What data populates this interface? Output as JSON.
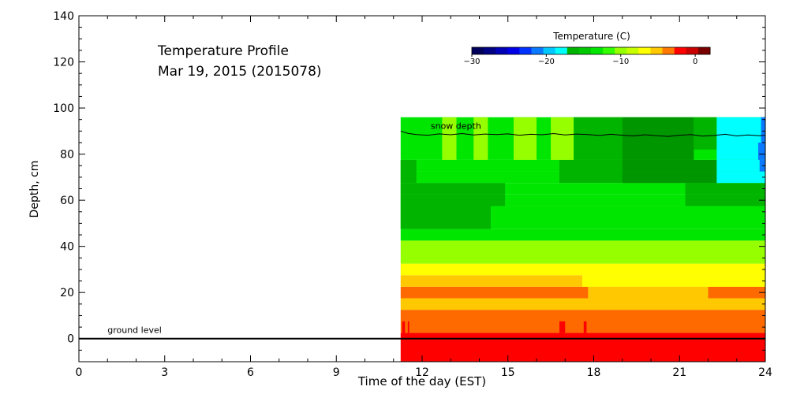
{
  "chart_data": {
    "type": "heatmap",
    "title_line1": "Temperature Profile",
    "title_line2": "Mar 19, 2015 (2015078)",
    "xlabel": "Time of the day (EST)",
    "ylabel": "Depth, cm",
    "xlim": [
      0,
      24
    ],
    "ylim": [
      -10,
      140
    ],
    "xticks": [
      0,
      3,
      6,
      9,
      12,
      15,
      18,
      21,
      24
    ],
    "yticks": [
      0,
      20,
      40,
      60,
      80,
      100,
      120,
      140
    ],
    "grid": false,
    "colorbar": {
      "title": "Temperature (C)",
      "range": [
        -30,
        2
      ],
      "tick_values": [
        -30,
        -20,
        -10,
        0
      ],
      "tick_labels": [
        "−30",
        "−20",
        "−10",
        "0"
      ],
      "colors": [
        "#00005a",
        "#000082",
        "#0000b4",
        "#0000e6",
        "#0032ff",
        "#0a78ff",
        "#00c8ff",
        "#00ffff",
        "#00b400",
        "#00c800",
        "#00e600",
        "#32ff00",
        "#96ff00",
        "#c8ff00",
        "#ffff00",
        "#ffc800",
        "#ff7800",
        "#ff0000",
        "#c80000",
        "#780000"
      ]
    },
    "annotations": [
      {
        "text": "snow depth",
        "x": 12.3,
        "y": 91
      },
      {
        "text": "ground level",
        "x": 1.0,
        "y": 2.5
      }
    ],
    "ground_level": 0,
    "data_start_hour": 11.25,
    "bands": [
      {
        "ymin": -10,
        "ymax": 2.5,
        "color": "#ff0000",
        "segments": []
      },
      {
        "ymin": 2.5,
        "ymax": 12.5,
        "color": "#ff6a00",
        "segments": [
          {
            "x0": 11.3,
            "x1": 11.4,
            "ymin": 2.5,
            "ymax": 7.5,
            "color": "#ff0000"
          },
          {
            "x0": 11.5,
            "x1": 11.55,
            "ymin": 2.5,
            "ymax": 7.5,
            "color": "#ff0000"
          },
          {
            "x0": 16.8,
            "x1": 17.0,
            "ymin": 2.5,
            "ymax": 7.5,
            "color": "#ff0000"
          },
          {
            "x0": 17.65,
            "x1": 17.75,
            "ymin": 2.5,
            "ymax": 7.5,
            "color": "#ff0000"
          }
        ]
      },
      {
        "ymin": 12.5,
        "ymax": 17.5,
        "color": "#ffc800",
        "segments": []
      },
      {
        "ymin": 17.5,
        "ymax": 22.5,
        "color": "#ff6a00",
        "segments": [
          {
            "x0": 17.8,
            "x1": 22.0,
            "ymin": 17.5,
            "ymax": 22.5,
            "color": "#ffc800"
          }
        ]
      },
      {
        "ymin": 22.5,
        "ymax": 27.5,
        "color": "#ffc800",
        "segments": [
          {
            "x0": 17.6,
            "x1": 24.0,
            "ymin": 22.5,
            "ymax": 27.5,
            "color": "#ffff00"
          }
        ]
      },
      {
        "ymin": 27.5,
        "ymax": 32.5,
        "color": "#ffff00",
        "segments": []
      },
      {
        "ymin": 32.5,
        "ymax": 42.5,
        "color": "#96ff00",
        "segments": []
      },
      {
        "ymin": 42.5,
        "ymax": 47.5,
        "color": "#00e600",
        "segments": []
      },
      {
        "ymin": 47.5,
        "ymax": 57.5,
        "color": "#00e600",
        "segments": [
          {
            "x0": 11.25,
            "x1": 14.4,
            "ymin": 47.5,
            "ymax": 57.5,
            "color": "#00b400"
          }
        ]
      },
      {
        "ymin": 57.5,
        "ymax": 62.5,
        "color": "#00e600",
        "segments": [
          {
            "x0": 11.25,
            "x1": 14.9,
            "ymin": 57.5,
            "ymax": 62.5,
            "color": "#00b400"
          },
          {
            "x0": 21.2,
            "x1": 24.0,
            "ymin": 57.5,
            "ymax": 62.5,
            "color": "#00b400"
          }
        ]
      },
      {
        "ymin": 62.5,
        "ymax": 67.5,
        "color": "#00e600",
        "segments": [
          {
            "x0": 11.25,
            "x1": 14.9,
            "ymin": 62.5,
            "ymax": 67.5,
            "color": "#00b400"
          },
          {
            "x0": 21.2,
            "x1": 24.0,
            "ymin": 62.5,
            "ymax": 67.5,
            "color": "#00b400"
          }
        ]
      },
      {
        "ymin": 67.5,
        "ymax": 72.5,
        "color": "#00e600",
        "segments": [
          {
            "x0": 11.25,
            "x1": 11.8,
            "ymin": 67.5,
            "ymax": 72.5,
            "color": "#00b400"
          },
          {
            "x0": 16.8,
            "x1": 22.3,
            "ymin": 67.5,
            "ymax": 72.5,
            "color": "#00b400"
          },
          {
            "x0": 19.0,
            "x1": 22.3,
            "ymin": 67.5,
            "ymax": 72.5,
            "color": "#009600"
          },
          {
            "x0": 22.3,
            "x1": 24.0,
            "ymin": 67.5,
            "ymax": 72.5,
            "color": "#00ffff"
          }
        ]
      },
      {
        "ymin": 72.5,
        "ymax": 77.5,
        "color": "#00e600",
        "segments": [
          {
            "x0": 11.25,
            "x1": 11.8,
            "ymin": 72.5,
            "ymax": 77.5,
            "color": "#00b400"
          },
          {
            "x0": 16.8,
            "x1": 19.0,
            "ymin": 72.5,
            "ymax": 77.5,
            "color": "#00b400"
          },
          {
            "x0": 19.0,
            "x1": 22.3,
            "ymin": 72.5,
            "ymax": 77.5,
            "color": "#009600"
          },
          {
            "x0": 22.3,
            "x1": 24.0,
            "ymin": 72.5,
            "ymax": 77.5,
            "color": "#00ffff"
          },
          {
            "x0": 23.8,
            "x1": 24.0,
            "ymin": 72.5,
            "ymax": 77.5,
            "color": "#0a78ff"
          }
        ]
      },
      {
        "ymin": 77.5,
        "ymax": 96,
        "color": "#00e600",
        "segments": [
          {
            "x0": 12.7,
            "x1": 13.2,
            "ymin": 77.5,
            "ymax": 96,
            "color": "#96ff00"
          },
          {
            "x0": 13.8,
            "x1": 14.3,
            "ymin": 77.5,
            "ymax": 96,
            "color": "#96ff00"
          },
          {
            "x0": 15.2,
            "x1": 16.0,
            "ymin": 77.5,
            "ymax": 96,
            "color": "#96ff00"
          },
          {
            "x0": 16.5,
            "x1": 17.3,
            "ymin": 77.5,
            "ymax": 96,
            "color": "#96ff00"
          },
          {
            "x0": 17.3,
            "x1": 19.0,
            "ymin": 77.5,
            "ymax": 96,
            "color": "#00b400"
          },
          {
            "x0": 19.0,
            "x1": 21.5,
            "ymin": 77.5,
            "ymax": 96,
            "color": "#009600"
          },
          {
            "x0": 21.5,
            "x1": 22.3,
            "ymin": 82,
            "ymax": 96,
            "color": "#00b400"
          },
          {
            "x0": 22.3,
            "x1": 24.0,
            "ymin": 77.5,
            "ymax": 96,
            "color": "#00ffff"
          },
          {
            "x0": 23.75,
            "x1": 24.0,
            "ymin": 77.5,
            "ymax": 85,
            "color": "#0a78ff"
          },
          {
            "x0": 23.85,
            "x1": 24.0,
            "ymin": 85,
            "ymax": 96,
            "color": "#0a78ff"
          }
        ]
      }
    ],
    "snow_depth_line": {
      "x": [
        11.25,
        11.5,
        11.8,
        12.2,
        12.6,
        13.0,
        13.4,
        13.8,
        14.2,
        14.6,
        15.0,
        15.4,
        15.8,
        16.2,
        16.6,
        17.0,
        17.4,
        17.8,
        18.2,
        18.6,
        19.0,
        19.4,
        19.8,
        20.2,
        20.6,
        21.0,
        21.4,
        21.8,
        22.2,
        22.6,
        23.0,
        23.4,
        23.8,
        24.0
      ],
      "y": [
        90,
        89,
        88.5,
        88.2,
        88.8,
        88.4,
        88.9,
        88.3,
        88.7,
        88.5,
        88.8,
        88.2,
        88.6,
        88.4,
        88.9,
        88.3,
        88.7,
        88.5,
        88.1,
        88.6,
        88.2,
        87.9,
        88.4,
        88.0,
        87.7,
        88.2,
        88.5,
        87.8,
        88.1,
        88.6,
        87.9,
        88.3,
        88.0,
        88.2
      ]
    }
  }
}
